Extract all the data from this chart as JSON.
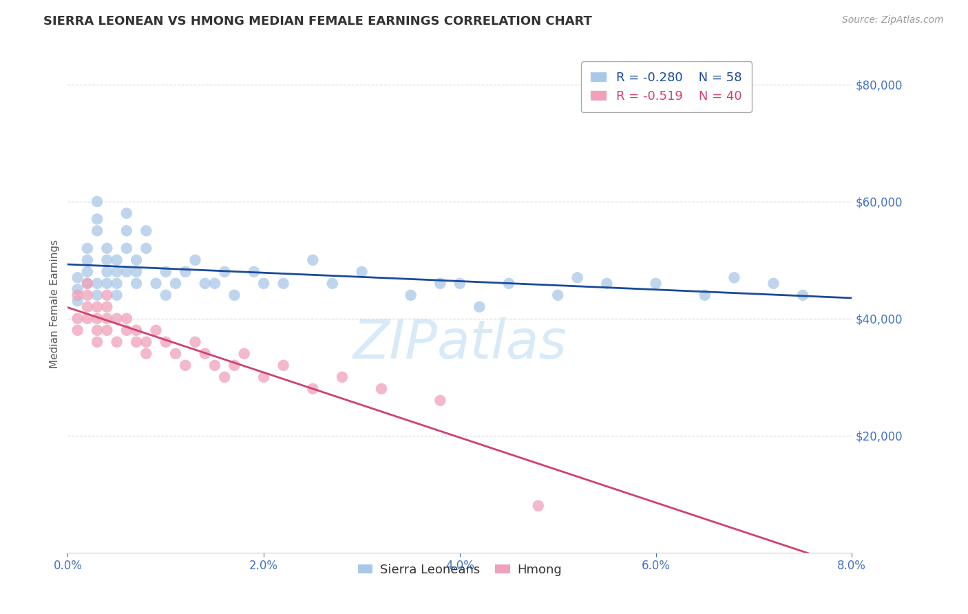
{
  "title": "SIERRA LEONEAN VS HMONG MEDIAN FEMALE EARNINGS CORRELATION CHART",
  "source": "Source: ZipAtlas.com",
  "ylabel": "Median Female Earnings",
  "xlim": [
    0.0,
    0.08
  ],
  "ylim": [
    0,
    85000
  ],
  "yticks": [
    20000,
    40000,
    60000,
    80000
  ],
  "xticks": [
    0.0,
    0.02,
    0.04,
    0.06,
    0.08
  ],
  "xtick_labels": [
    "0.0%",
    "2.0%",
    "4.0%",
    "6.0%",
    "8.0%"
  ],
  "sierra_R": -0.28,
  "sierra_N": 58,
  "hmong_R": -0.519,
  "hmong_N": 40,
  "sierra_color": "#a8c8e8",
  "hmong_color": "#f0a0b8",
  "sierra_line_color": "#1a4a9a",
  "hmong_line_color": "#d04070",
  "background_color": "#ffffff",
  "grid_color": "#cccccc",
  "axis_color": "#4472c4",
  "watermark_color": "#d8eaf8",
  "sierra_x": [
    0.001,
    0.001,
    0.001,
    0.002,
    0.002,
    0.002,
    0.002,
    0.003,
    0.003,
    0.003,
    0.003,
    0.003,
    0.004,
    0.004,
    0.004,
    0.004,
    0.005,
    0.005,
    0.005,
    0.005,
    0.006,
    0.006,
    0.006,
    0.006,
    0.007,
    0.007,
    0.007,
    0.008,
    0.008,
    0.009,
    0.01,
    0.01,
    0.011,
    0.012,
    0.013,
    0.014,
    0.015,
    0.016,
    0.017,
    0.019,
    0.02,
    0.022,
    0.025,
    0.027,
    0.03,
    0.035,
    0.038,
    0.04,
    0.042,
    0.045,
    0.05,
    0.052,
    0.055,
    0.06,
    0.065,
    0.068,
    0.072,
    0.075
  ],
  "sierra_y": [
    45000,
    47000,
    43000,
    50000,
    52000,
    48000,
    46000,
    55000,
    57000,
    60000,
    46000,
    44000,
    48000,
    50000,
    46000,
    52000,
    48000,
    50000,
    46000,
    44000,
    55000,
    58000,
    52000,
    48000,
    50000,
    46000,
    48000,
    55000,
    52000,
    46000,
    48000,
    44000,
    46000,
    48000,
    50000,
    46000,
    46000,
    48000,
    44000,
    48000,
    46000,
    46000,
    50000,
    46000,
    48000,
    44000,
    46000,
    46000,
    42000,
    46000,
    44000,
    47000,
    46000,
    46000,
    44000,
    47000,
    46000,
    44000
  ],
  "hmong_x": [
    0.001,
    0.001,
    0.001,
    0.002,
    0.002,
    0.002,
    0.002,
    0.003,
    0.003,
    0.003,
    0.003,
    0.004,
    0.004,
    0.004,
    0.004,
    0.005,
    0.005,
    0.006,
    0.006,
    0.007,
    0.007,
    0.008,
    0.008,
    0.009,
    0.01,
    0.011,
    0.012,
    0.013,
    0.014,
    0.015,
    0.016,
    0.017,
    0.018,
    0.02,
    0.022,
    0.025,
    0.028,
    0.032,
    0.038,
    0.048
  ],
  "hmong_y": [
    40000,
    44000,
    38000,
    42000,
    46000,
    40000,
    44000,
    36000,
    40000,
    42000,
    38000,
    44000,
    40000,
    38000,
    42000,
    36000,
    40000,
    38000,
    40000,
    36000,
    38000,
    34000,
    36000,
    38000,
    36000,
    34000,
    32000,
    36000,
    34000,
    32000,
    30000,
    32000,
    34000,
    30000,
    32000,
    28000,
    30000,
    28000,
    26000,
    8000
  ]
}
